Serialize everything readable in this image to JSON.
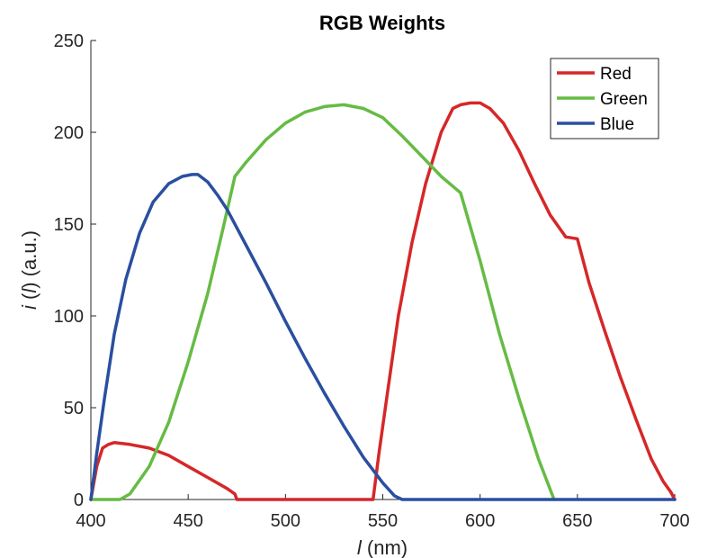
{
  "chart_data": {
    "type": "line",
    "title": "RGB Weights",
    "xlabel_var": "l",
    "xlabel_unit": " (nm)",
    "ylabel_fn": "i",
    "ylabel_open": " (",
    "ylabel_var": "l",
    "ylabel_close": ") (a.u.)",
    "xlim": [
      400,
      700
    ],
    "ylim": [
      0,
      250
    ],
    "xticks": [
      400,
      450,
      500,
      550,
      600,
      650,
      700
    ],
    "yticks": [
      0,
      50,
      100,
      150,
      200,
      250
    ],
    "xtick_labels": [
      "400",
      "450",
      "500",
      "550",
      "600",
      "650",
      "700"
    ],
    "ytick_labels": [
      "0",
      "50",
      "100",
      "150",
      "200",
      "250"
    ],
    "legend_position": "top-right",
    "series": [
      {
        "name": "Red",
        "color": "#d62728",
        "x": [
          400,
          403,
          406,
          409,
          412,
          420,
          430,
          440,
          450,
          460,
          470,
          474,
          475,
          480,
          500,
          520,
          540,
          545,
          548,
          552,
          558,
          565,
          572,
          580,
          586,
          590,
          595,
          600,
          605,
          612,
          620,
          628,
          636,
          644,
          650,
          656,
          664,
          672,
          680,
          688,
          694,
          698,
          700
        ],
        "y": [
          0,
          18,
          28,
          30,
          31,
          30,
          28,
          24,
          18,
          12,
          6,
          3,
          0,
          0,
          0,
          0,
          0,
          0,
          25,
          55,
          100,
          140,
          172,
          200,
          213,
          215,
          216,
          216,
          213,
          205,
          190,
          172,
          155,
          143,
          142,
          118,
          92,
          67,
          44,
          22,
          10,
          4,
          0
        ]
      },
      {
        "name": "Green",
        "color": "#66bb44",
        "x": [
          400,
          410,
          415,
          420,
          430,
          440,
          450,
          460,
          468,
          474,
          480,
          490,
          500,
          510,
          520,
          530,
          540,
          550,
          560,
          570,
          580,
          590,
          600,
          610,
          620,
          630,
          638
        ],
        "y": [
          0,
          0,
          0,
          3,
          18,
          42,
          75,
          112,
          148,
          176,
          184,
          196,
          205,
          211,
          214,
          215,
          213,
          208,
          198,
          187,
          176,
          167,
          130,
          90,
          55,
          22,
          0
        ]
      },
      {
        "name": "Blue",
        "color": "#2a4fa0",
        "x": [
          400,
          403,
          407,
          412,
          418,
          425,
          432,
          440,
          447,
          452,
          455,
          460,
          465,
          470,
          480,
          490,
          500,
          510,
          520,
          530,
          540,
          550,
          556,
          560,
          580,
          600,
          650,
          700
        ],
        "y": [
          0,
          25,
          55,
          90,
          120,
          145,
          162,
          172,
          176,
          177,
          177,
          173,
          166,
          158,
          138,
          118,
          97,
          77,
          58,
          40,
          23,
          9,
          2,
          0,
          0,
          0,
          0,
          0
        ]
      }
    ]
  }
}
